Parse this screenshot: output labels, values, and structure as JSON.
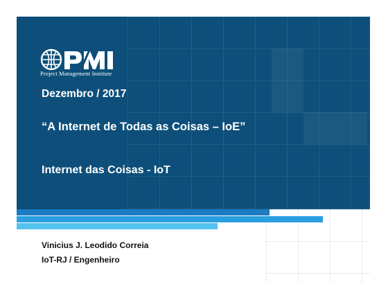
{
  "logo": {
    "wordmark": "PMI",
    "subtitle": "Project Management Institute"
  },
  "title": {
    "date": "Dezembro / 2017",
    "quote": "“A Internet de Todas as Coisas – IoE”",
    "topic": "Internet das Coisas - IoT"
  },
  "author": {
    "name": "Vinicius J. Leodido Correia",
    "role": "IoT-RJ / Engenheiro"
  },
  "colors": {
    "banner": "#0d4f7a",
    "stripe_dark": "#1b7cc4",
    "stripe_mid": "#2a9fe0",
    "stripe_light": "#55c2ee"
  }
}
